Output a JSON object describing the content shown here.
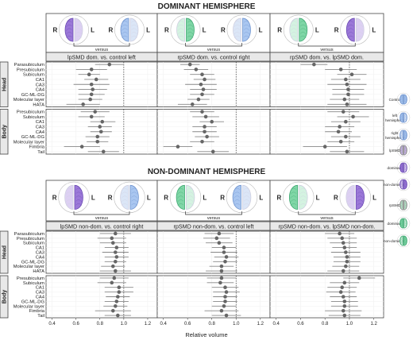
{
  "sections": {
    "dominant": "DOMINANT HEMISPHERE",
    "nondominant": "NON-DOMINANT HEMISPHERE"
  },
  "versus": "versus",
  "hemi_R": "R",
  "hemi_L": "L",
  "groups": {
    "head": "Head",
    "body": "Body"
  },
  "head_rows": [
    "Parasubiculum",
    "Presubiculum",
    "Subiculum",
    "CA1",
    "CA3",
    "CA4",
    "GC-ML-DG",
    "Molecular layer",
    "HATA"
  ],
  "body_rows": [
    "Presubiculum",
    "Subiculum",
    "CA1",
    "CA3",
    "CA4",
    "GC-ML-DG",
    "Molecular layer",
    "Fimbria",
    "Tail"
  ],
  "legend": [
    {
      "label": "Control",
      "color": "#a9c6f0"
    },
    {
      "label": "left hemisphere",
      "color": "#a9c6f0"
    },
    {
      "label": "right hemisphere",
      "color": "#a9c6f0"
    },
    {
      "label": "lpSMD",
      "color": "#c9b6ea"
    },
    {
      "label": "dominant",
      "color": "#9b78d8"
    },
    {
      "label": "non-dominant",
      "color": "#9b78d8"
    },
    {
      "label": "rpSMD",
      "color": "#b8e8cc"
    },
    {
      "label": "dominant",
      "color": "#7fd6a6"
    },
    {
      "label": "non-dominant",
      "color": "#7fd6a6"
    }
  ],
  "colors": {
    "control": "#a9c6f0",
    "lpsmd": "#9b78d8",
    "lpsmd_light": "#ddd0f3",
    "rpsmd": "#7fd6a6",
    "rpsmd_light": "#d4f3e1",
    "point": "#666666",
    "ci": "#888888",
    "strip": "#e8e8e8"
  },
  "chart_data": {
    "type": "forest",
    "xlabel": "Relative volume",
    "xlim": [
      0.35,
      1.28
    ],
    "xticks": [
      0.4,
      0.6,
      0.8,
      1.0,
      1.2
    ],
    "xtick_labels": [
      "0.4",
      "0.6",
      "0.8",
      "1.0",
      "1.2"
    ],
    "reference_line": 1.0,
    "rows": [
      "Parasubiculum",
      "Presubiculum",
      "Subiculum",
      "CA1",
      "CA3",
      "CA4",
      "GC-ML-DG",
      "Molecular layer",
      "HATA",
      "Presubiculum",
      "Subiculum",
      "CA1",
      "CA3",
      "CA4",
      "GC-ML-DG",
      "Molecular layer",
      "Fimbria",
      "Tail"
    ],
    "panels": [
      {
        "title": "lpSMD dom. vs. control left",
        "section": "dominant",
        "left": {
          "color": "lpsmd",
          "side": "L"
        },
        "right": {
          "color": "control",
          "side": "L"
        },
        "estimates": [
          0.88,
          0.73,
          0.71,
          0.77,
          0.73,
          0.74,
          0.73,
          0.72,
          0.66,
          0.76,
          0.73,
          0.82,
          0.8,
          0.81,
          0.78,
          0.78,
          0.65,
          0.83
        ],
        "lower": [
          0.76,
          0.6,
          0.62,
          0.67,
          0.58,
          0.62,
          0.62,
          0.62,
          0.52,
          0.64,
          0.62,
          0.72,
          0.7,
          0.72,
          0.68,
          0.69,
          0.5,
          0.7
        ],
        "upper": [
          1.0,
          0.86,
          0.8,
          0.87,
          0.88,
          0.86,
          0.84,
          0.82,
          0.8,
          0.88,
          0.84,
          0.93,
          0.9,
          0.9,
          0.88,
          0.87,
          0.8,
          0.96
        ]
      },
      {
        "title": "rpSMD dom. vs. control right",
        "section": "dominant",
        "left": {
          "color": "rpsmd",
          "side": "R"
        },
        "right": {
          "color": "control",
          "side": "R"
        },
        "estimates": [
          0.62,
          0.67,
          0.72,
          0.74,
          0.71,
          0.73,
          0.72,
          0.69,
          0.64,
          0.72,
          0.75,
          0.8,
          0.74,
          0.74,
          0.76,
          0.72,
          0.52,
          0.81
        ],
        "lower": [
          0.54,
          0.57,
          0.62,
          0.65,
          0.58,
          0.62,
          0.62,
          0.6,
          0.52,
          0.62,
          0.64,
          0.7,
          0.64,
          0.64,
          0.66,
          0.62,
          0.4,
          0.68
        ],
        "upper": [
          0.7,
          0.77,
          0.82,
          0.83,
          0.84,
          0.84,
          0.82,
          0.78,
          0.76,
          0.82,
          0.86,
          0.9,
          0.84,
          0.84,
          0.86,
          0.82,
          0.64,
          0.94
        ]
      },
      {
        "title": "rpSMD dom. vs. lpSMD dom.",
        "section": "dominant",
        "left": {
          "color": "rpsmd",
          "side": "R"
        },
        "right": {
          "color": "lpsmd",
          "side": "L"
        },
        "estimates": [
          0.71,
          0.93,
          1.02,
          0.97,
          0.98,
          0.99,
          0.99,
          0.96,
          0.98,
          0.95,
          1.03,
          0.97,
          0.92,
          0.91,
          0.97,
          0.93,
          0.8,
          0.98
        ],
        "lower": [
          0.6,
          0.8,
          0.9,
          0.85,
          0.82,
          0.86,
          0.86,
          0.84,
          0.82,
          0.82,
          0.9,
          0.85,
          0.8,
          0.8,
          0.85,
          0.82,
          0.62,
          0.84
        ],
        "upper": [
          0.82,
          1.06,
          1.14,
          1.09,
          1.14,
          1.12,
          1.12,
          1.08,
          1.14,
          1.08,
          1.16,
          1.09,
          1.04,
          1.02,
          1.09,
          1.04,
          0.98,
          1.12
        ]
      },
      {
        "title": "lpSMD non-dom. vs. control right",
        "section": "nondominant",
        "left": {
          "color": "lpsmd",
          "side": "R"
        },
        "right": {
          "color": "control",
          "side": "R"
        },
        "estimates": [
          0.93,
          0.9,
          0.91,
          0.94,
          0.93,
          0.94,
          0.93,
          0.91,
          0.93,
          0.92,
          0.9,
          0.96,
          0.96,
          0.95,
          0.94,
          0.93,
          0.91,
          0.95
        ],
        "lower": [
          0.8,
          0.78,
          0.8,
          0.84,
          0.82,
          0.84,
          0.84,
          0.81,
          0.8,
          0.8,
          0.78,
          0.84,
          0.84,
          0.85,
          0.84,
          0.83,
          0.76,
          0.84
        ],
        "upper": [
          1.06,
          1.02,
          1.02,
          1.04,
          1.04,
          1.04,
          1.02,
          1.01,
          1.06,
          1.04,
          1.02,
          1.08,
          1.08,
          1.05,
          1.04,
          1.03,
          1.06,
          1.06
        ]
      },
      {
        "title": "rpSMD non-dom. vs. control left",
        "section": "nondominant",
        "left": {
          "color": "rpsmd",
          "side": "L"
        },
        "right": {
          "color": "control",
          "side": "L"
        },
        "estimates": [
          0.86,
          0.84,
          0.86,
          0.9,
          0.9,
          0.92,
          0.91,
          0.88,
          0.88,
          0.88,
          0.87,
          0.91,
          0.92,
          0.91,
          0.91,
          0.9,
          0.88,
          0.92
        ],
        "lower": [
          0.74,
          0.73,
          0.75,
          0.8,
          0.79,
          0.82,
          0.81,
          0.78,
          0.75,
          0.76,
          0.76,
          0.8,
          0.81,
          0.81,
          0.81,
          0.8,
          0.74,
          0.8
        ],
        "upper": [
          0.98,
          0.95,
          0.97,
          1.0,
          1.01,
          1.02,
          1.01,
          0.98,
          1.01,
          1.0,
          0.98,
          1.02,
          1.03,
          1.01,
          1.01,
          1.0,
          1.02,
          1.04
        ]
      },
      {
        "title": "rpSMD non-dom. vs. lpSMD non-dom.",
        "section": "nondominant",
        "left": {
          "color": "rpsmd",
          "side": "L"
        },
        "right": {
          "color": "lpsmd",
          "side": "R"
        },
        "estimates": [
          0.92,
          0.94,
          0.95,
          0.96,
          0.97,
          0.98,
          0.98,
          0.97,
          0.95,
          1.08,
          0.96,
          0.94,
          0.93,
          0.95,
          0.96,
          0.96,
          0.95,
          0.96
        ],
        "lower": [
          0.8,
          0.82,
          0.84,
          0.86,
          0.85,
          0.87,
          0.87,
          0.86,
          0.82,
          0.95,
          0.84,
          0.82,
          0.81,
          0.84,
          0.85,
          0.85,
          0.8,
          0.83
        ],
        "upper": [
          1.04,
          1.06,
          1.06,
          1.06,
          1.09,
          1.09,
          1.09,
          1.08,
          1.08,
          1.21,
          1.08,
          1.06,
          1.05,
          1.06,
          1.07,
          1.07,
          1.1,
          1.09
        ]
      }
    ]
  }
}
